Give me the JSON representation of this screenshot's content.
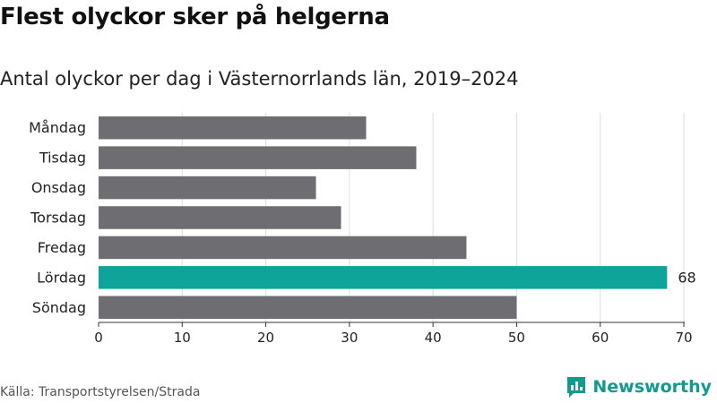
{
  "title": "Flest olyckor sker på helgerna",
  "subtitle": "Antal olyckor per dag i Västernorrlands län, 2019–2024",
  "source": "Källa: Transportstyrelsen/Strada",
  "logo": {
    "text": "Newsworthy",
    "icon": "newsworthy-chart-icon"
  },
  "colors": {
    "bar": "#6e6d72",
    "highlight": "#0fa49a",
    "grid": "#dddddd",
    "brand": "#119b8f"
  },
  "chart_data": {
    "type": "bar",
    "orientation": "horizontal",
    "categories": [
      "Måndag",
      "Tisdag",
      "Onsdag",
      "Torsdag",
      "Fredag",
      "Lördag",
      "Söndag"
    ],
    "values": [
      32,
      38,
      26,
      29,
      44,
      68,
      50
    ],
    "highlight_index": 5,
    "data_labels": [
      {
        "category": "Lördag",
        "text": "68"
      }
    ],
    "xlim": [
      0,
      70
    ],
    "xticks": [
      0,
      10,
      20,
      30,
      40,
      50,
      60,
      70
    ],
    "grid": true
  }
}
